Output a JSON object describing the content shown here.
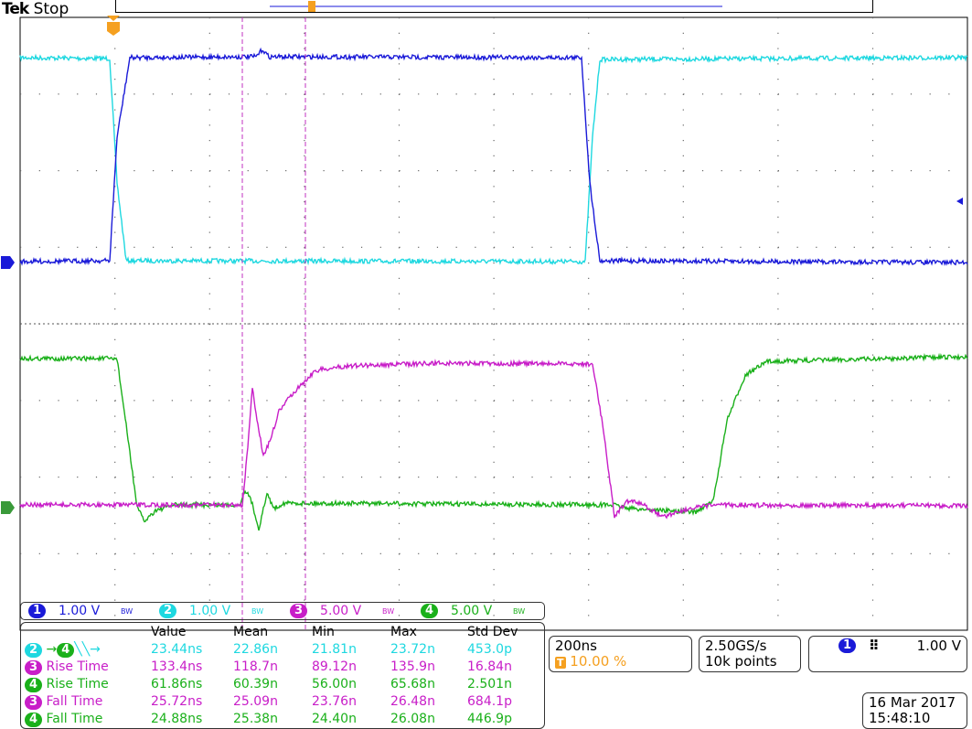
{
  "header": {
    "brand": "Tek",
    "status": "Stop"
  },
  "colors": {
    "ch1": "#1a1ad8",
    "ch2": "#1ed8e0",
    "ch3": "#c81ec8",
    "ch4": "#1ab01a",
    "trigger": "#f5a020",
    "cursor": "#c030c0"
  },
  "channels": [
    {
      "num": "1",
      "scale": "1.00 V",
      "bw": "BW"
    },
    {
      "num": "2",
      "scale": "1.00 V",
      "bw": "BW"
    },
    {
      "num": "3",
      "scale": "5.00 V",
      "bw": "BW"
    },
    {
      "num": "4",
      "scale": "5.00 V",
      "bw": "BW"
    }
  ],
  "measurements": {
    "headers": [
      "Value",
      "Mean",
      "Min",
      "Max",
      "Std Dev"
    ],
    "rows": [
      {
        "src": "2",
        "src2": "4",
        "label": "",
        "edge_icon": "falling-to-falling-delay-icon",
        "values": [
          "23.44ns",
          "22.86n",
          "21.81n",
          "23.72n",
          "453.0p"
        ]
      },
      {
        "src": "3",
        "label": "Rise Time",
        "values": [
          "133.4ns",
          "118.7n",
          "89.12n",
          "135.9n",
          "16.84n"
        ]
      },
      {
        "src": "4",
        "label": "Rise Time",
        "values": [
          "61.86ns",
          "60.39n",
          "56.00n",
          "65.68n",
          "2.501n"
        ]
      },
      {
        "src": "3",
        "label": "Fall Time",
        "values": [
          "25.72ns",
          "25.09n",
          "23.76n",
          "26.48n",
          "684.1p"
        ]
      },
      {
        "src": "4",
        "label": "Fall Time",
        "values": [
          "24.88ns",
          "25.38n",
          "24.40n",
          "26.08n",
          "446.9p"
        ]
      }
    ]
  },
  "horizontal": {
    "scale": "200ns",
    "trigger_pos": "10.00 %"
  },
  "acquisition": {
    "rate": "2.50GS/s",
    "points": "10k points"
  },
  "trigger": {
    "source": "1",
    "slope": "rising-edge-icon",
    "level": "1.00 V"
  },
  "datetime": {
    "date": "16 Mar  2017",
    "time": "15:48:10"
  },
  "markers": {
    "trigger": "T",
    "ch1": "1",
    "ch4": "4"
  }
}
